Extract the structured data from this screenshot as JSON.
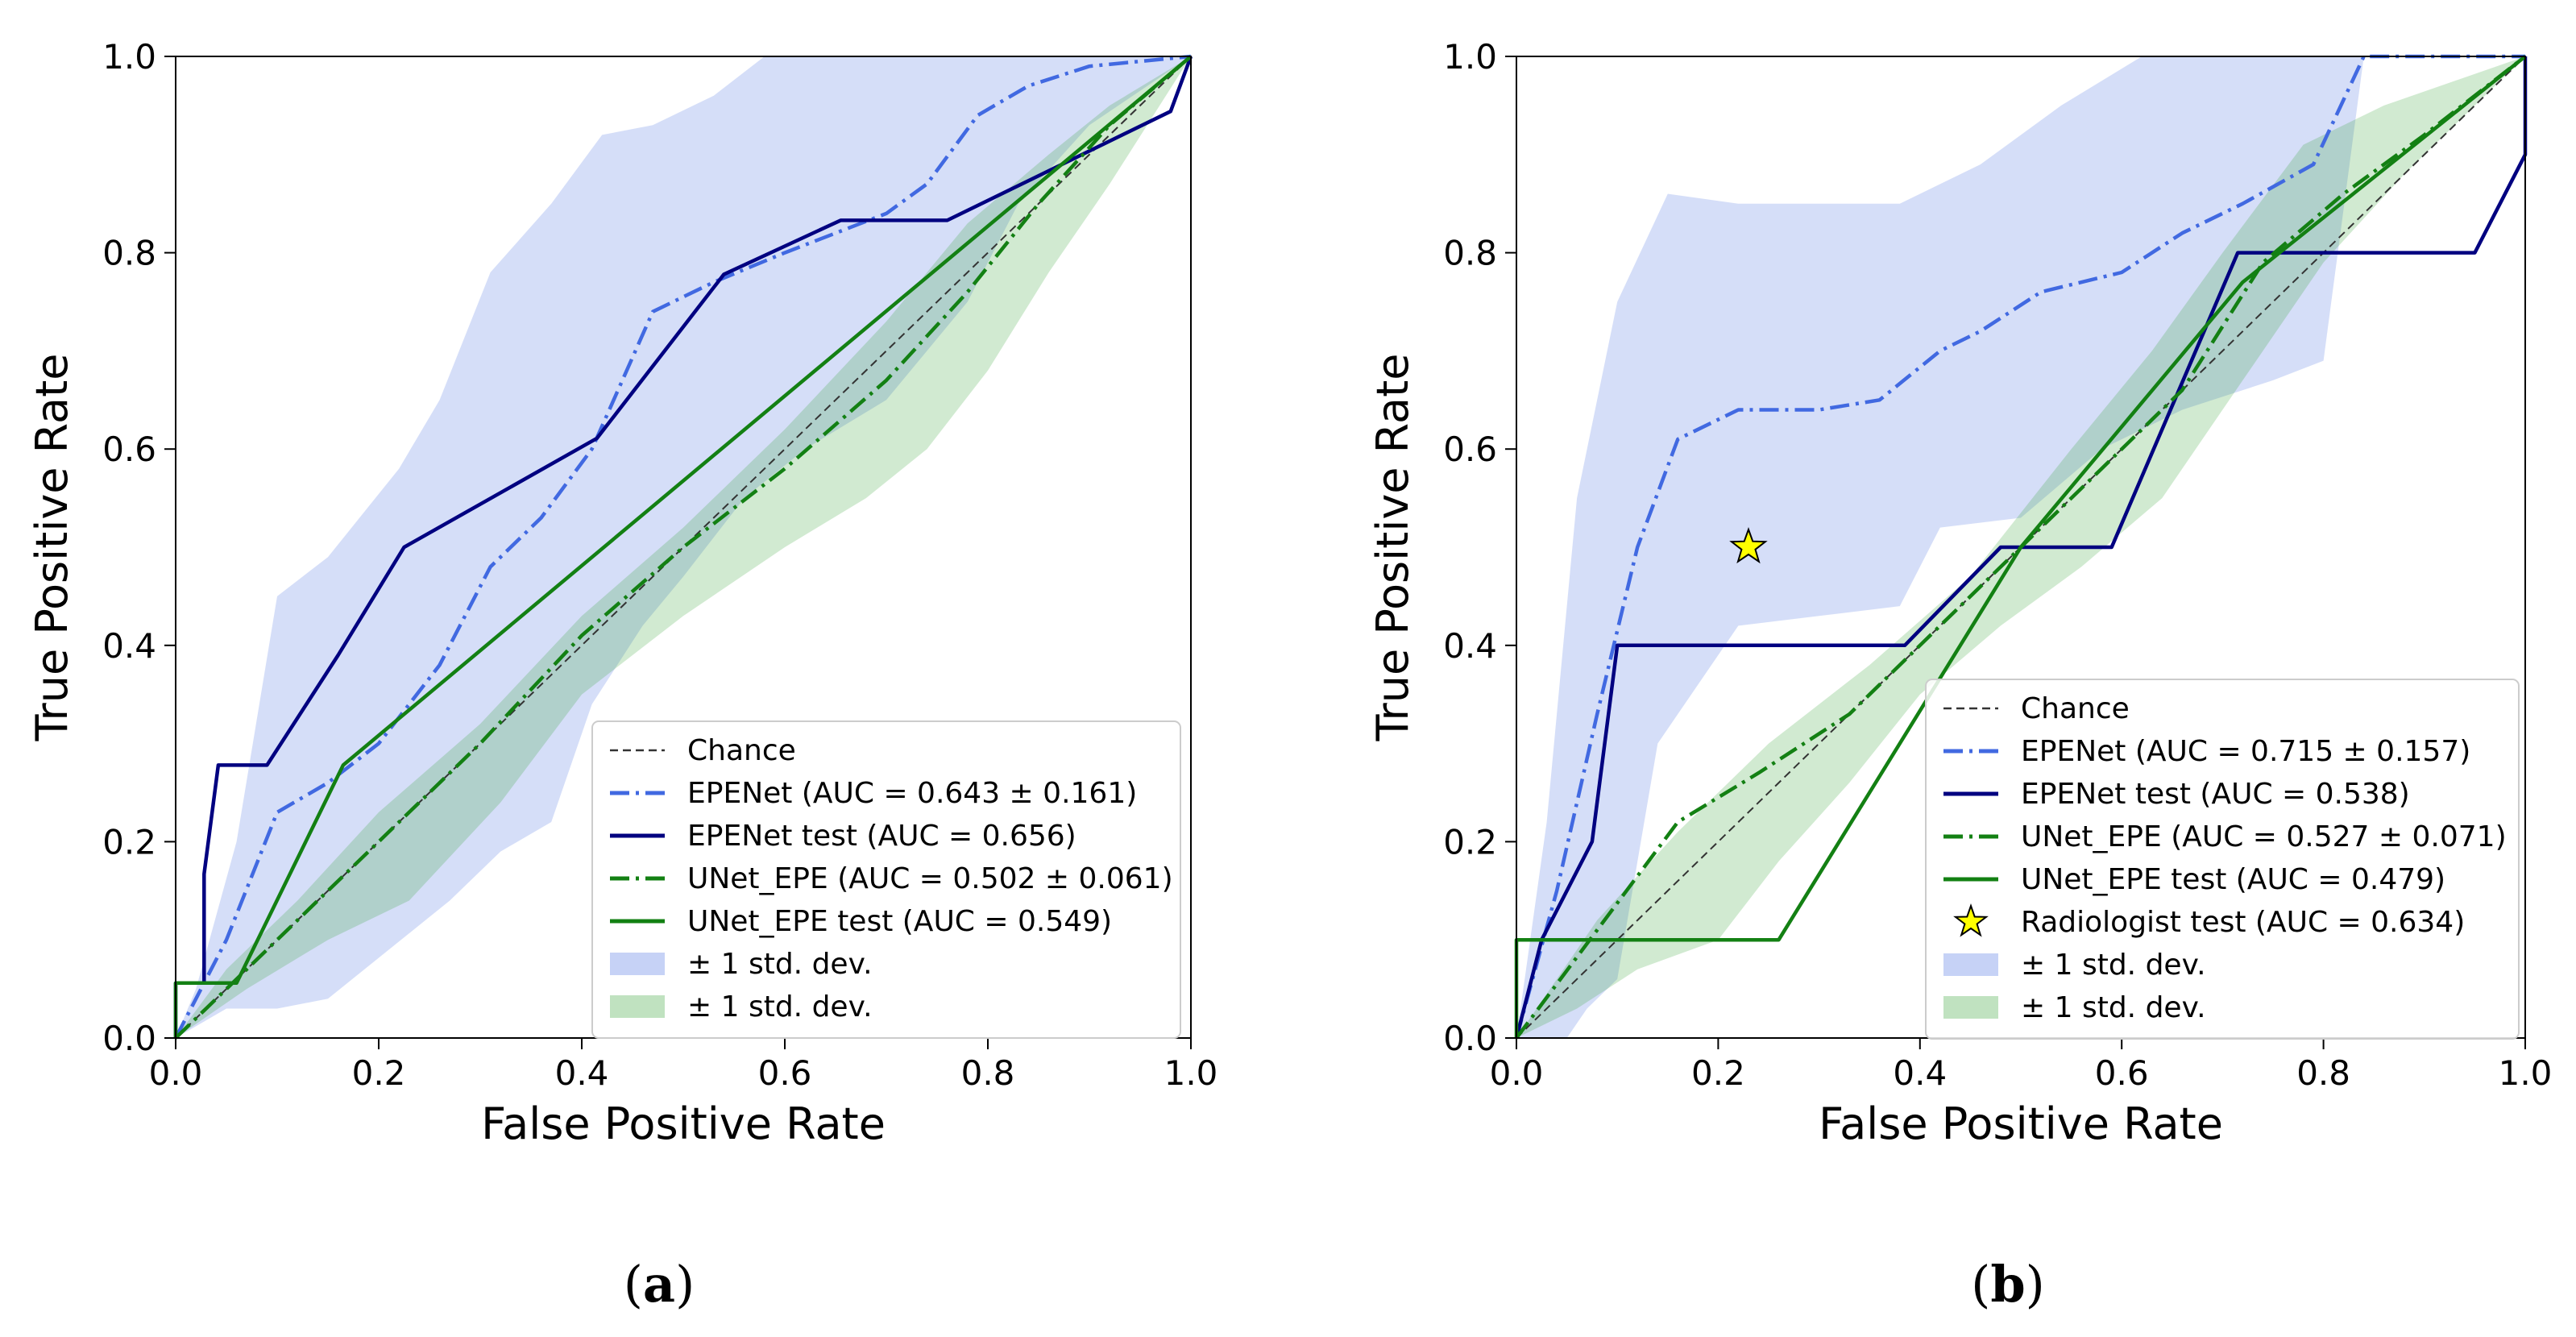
{
  "chart_data": [
    {
      "type": "line",
      "caption_letter": "a",
      "xlabel": "False Positive Rate",
      "ylabel": "True Positive Rate",
      "xlim": [
        0,
        1
      ],
      "ylim": [
        0,
        1
      ],
      "xticks": [
        "0.0",
        "0.2",
        "0.4",
        "0.6",
        "0.8",
        "1.0"
      ],
      "yticks": [
        "0.0",
        "0.2",
        "0.4",
        "0.6",
        "0.8",
        "1.0"
      ],
      "legend_position": "lower-right",
      "legend": [
        "Chance",
        "EPENet (AUC = 0.643 ± 0.161)",
        "EPENet test (AUC = 0.656)",
        "UNet_EPE (AUC = 0.502 ± 0.061)",
        "UNet_EPE test (AUC = 0.549)",
        "± 1 std. dev.",
        "± 1 std. dev."
      ],
      "bands": [
        {
          "name": "EPENet ± 1 std. dev.",
          "color": "#4169e1",
          "upper": [
            [
              0,
              0
            ],
            [
              0.02,
              0.05
            ],
            [
              0.06,
              0.2
            ],
            [
              0.1,
              0.45
            ],
            [
              0.15,
              0.49
            ],
            [
              0.22,
              0.58
            ],
            [
              0.26,
              0.65
            ],
            [
              0.31,
              0.78
            ],
            [
              0.37,
              0.85
            ],
            [
              0.42,
              0.92
            ],
            [
              0.47,
              0.93
            ],
            [
              0.53,
              0.96
            ],
            [
              0.58,
              1.0
            ],
            [
              1.0,
              1.0
            ]
          ],
          "lower": [
            [
              0,
              0
            ],
            [
              0.05,
              0.03
            ],
            [
              0.1,
              0.03
            ],
            [
              0.15,
              0.04
            ],
            [
              0.21,
              0.09
            ],
            [
              0.27,
              0.14
            ],
            [
              0.32,
              0.19
            ],
            [
              0.37,
              0.22
            ],
            [
              0.41,
              0.34
            ],
            [
              0.46,
              0.42
            ],
            [
              0.5,
              0.47
            ],
            [
              0.56,
              0.55
            ],
            [
              0.62,
              0.6
            ],
            [
              0.7,
              0.65
            ],
            [
              0.78,
              0.75
            ],
            [
              0.83,
              0.85
            ],
            [
              0.9,
              0.93
            ],
            [
              1.0,
              1.0
            ]
          ]
        },
        {
          "name": "UNet_EPE ± 1 std. dev.",
          "color": "#2e9e2e",
          "upper": [
            [
              0,
              0
            ],
            [
              0.05,
              0.07
            ],
            [
              0.12,
              0.14
            ],
            [
              0.2,
              0.23
            ],
            [
              0.3,
              0.32
            ],
            [
              0.4,
              0.43
            ],
            [
              0.5,
              0.52
            ],
            [
              0.6,
              0.62
            ],
            [
              0.7,
              0.73
            ],
            [
              0.78,
              0.83
            ],
            [
              0.86,
              0.9
            ],
            [
              0.92,
              0.95
            ],
            [
              1.0,
              1.0
            ]
          ],
          "lower": [
            [
              0,
              0
            ],
            [
              0.07,
              0.05
            ],
            [
              0.15,
              0.1
            ],
            [
              0.23,
              0.14
            ],
            [
              0.32,
              0.24
            ],
            [
              0.4,
              0.35
            ],
            [
              0.5,
              0.43
            ],
            [
              0.6,
              0.5
            ],
            [
              0.68,
              0.55
            ],
            [
              0.74,
              0.6
            ],
            [
              0.8,
              0.68
            ],
            [
              0.86,
              0.78
            ],
            [
              0.92,
              0.87
            ],
            [
              1.0,
              1.0
            ]
          ]
        }
      ],
      "series": [
        {
          "name": "Chance",
          "style": "dashed-thin",
          "color": "#333333",
          "points": [
            [
              0,
              0
            ],
            [
              1,
              1
            ]
          ]
        },
        {
          "name": "EPENet (AUC = 0.643 ± 0.161)",
          "style": "dashdot",
          "color": "#4169e1",
          "points": [
            [
              0,
              0
            ],
            [
              0.05,
              0.1
            ],
            [
              0.1,
              0.23
            ],
            [
              0.15,
              0.26
            ],
            [
              0.2,
              0.3
            ],
            [
              0.26,
              0.38
            ],
            [
              0.31,
              0.48
            ],
            [
              0.36,
              0.53
            ],
            [
              0.41,
              0.6
            ],
            [
              0.47,
              0.74
            ],
            [
              0.53,
              0.77
            ],
            [
              0.6,
              0.8
            ],
            [
              0.7,
              0.84
            ],
            [
              0.74,
              0.87
            ],
            [
              0.79,
              0.94
            ],
            [
              0.84,
              0.97
            ],
            [
              0.9,
              0.99
            ],
            [
              1.0,
              1.0
            ]
          ]
        },
        {
          "name": "EPENet test (AUC = 0.656)",
          "style": "solid",
          "color": "#000080",
          "points": [
            [
              0,
              0
            ],
            [
              0,
              0.056
            ],
            [
              0.028,
              0.056
            ],
            [
              0.028,
              0.167
            ],
            [
              0.042,
              0.278
            ],
            [
              0.09,
              0.278
            ],
            [
              0.16,
              0.39
            ],
            [
              0.225,
              0.5
            ],
            [
              0.415,
              0.611
            ],
            [
              0.54,
              0.778
            ],
            [
              0.655,
              0.833
            ],
            [
              0.76,
              0.833
            ],
            [
              0.98,
              0.944
            ],
            [
              1.0,
              1.0
            ]
          ]
        },
        {
          "name": "UNet_EPE (AUC = 0.502 ± 0.061)",
          "style": "dashdot",
          "color": "#138013",
          "points": [
            [
              0,
              0
            ],
            [
              0.1,
              0.1
            ],
            [
              0.2,
              0.2
            ],
            [
              0.3,
              0.3
            ],
            [
              0.4,
              0.41
            ],
            [
              0.5,
              0.5
            ],
            [
              0.6,
              0.58
            ],
            [
              0.7,
              0.67
            ],
            [
              0.78,
              0.76
            ],
            [
              0.85,
              0.85
            ],
            [
              0.92,
              0.93
            ],
            [
              1.0,
              1.0
            ]
          ]
        },
        {
          "name": "UNet_EPE test (AUC = 0.549)",
          "style": "solid",
          "color": "#138013",
          "points": [
            [
              0,
              0
            ],
            [
              0,
              0.056
            ],
            [
              0.06,
              0.056
            ],
            [
              0.165,
              0.278
            ],
            [
              1.0,
              1.0
            ]
          ]
        }
      ]
    },
    {
      "type": "line",
      "caption_letter": "b",
      "xlabel": "False Positive Rate",
      "ylabel": "True Positive Rate",
      "xlim": [
        0,
        1
      ],
      "ylim": [
        0,
        1
      ],
      "xticks": [
        "0.0",
        "0.2",
        "0.4",
        "0.6",
        "0.8",
        "1.0"
      ],
      "yticks": [
        "0.0",
        "0.2",
        "0.4",
        "0.6",
        "0.8",
        "1.0"
      ],
      "legend_position": "lower-right",
      "legend": [
        "Chance",
        "EPENet (AUC = 0.715 ± 0.157)",
        "EPENet test (AUC = 0.538)",
        "UNet_EPE (AUC = 0.527 ± 0.071)",
        "UNet_EPE test (AUC = 0.479)",
        "Radiologist test (AUC = 0.634)",
        "± 1 std. dev.",
        "± 1 std. dev."
      ],
      "bands": [
        {
          "name": "EPENet ± 1 std. dev.",
          "color": "#4169e1",
          "upper": [
            [
              0,
              0
            ],
            [
              0.03,
              0.22
            ],
            [
              0.06,
              0.55
            ],
            [
              0.1,
              0.75
            ],
            [
              0.15,
              0.86
            ],
            [
              0.22,
              0.85
            ],
            [
              0.3,
              0.85
            ],
            [
              0.38,
              0.85
            ],
            [
              0.46,
              0.89
            ],
            [
              0.54,
              0.95
            ],
            [
              0.62,
              1.0
            ],
            [
              1.0,
              1.0
            ]
          ],
          "lower": [
            [
              0,
              0
            ],
            [
              0.05,
              0.0
            ],
            [
              0.07,
              0.03
            ],
            [
              0.1,
              0.06
            ],
            [
              0.14,
              0.3
            ],
            [
              0.22,
              0.42
            ],
            [
              0.3,
              0.43
            ],
            [
              0.38,
              0.44
            ],
            [
              0.42,
              0.52
            ],
            [
              0.5,
              0.53
            ],
            [
              0.58,
              0.6
            ],
            [
              0.66,
              0.64
            ],
            [
              0.75,
              0.67
            ],
            [
              0.8,
              0.69
            ],
            [
              0.84,
              1.0
            ],
            [
              1.0,
              1.0
            ]
          ]
        },
        {
          "name": "UNet_EPE ± 1 std. dev.",
          "color": "#2e9e2e",
          "upper": [
            [
              0,
              0
            ],
            [
              0.04,
              0.06
            ],
            [
              0.08,
              0.12
            ],
            [
              0.16,
              0.21
            ],
            [
              0.25,
              0.3
            ],
            [
              0.35,
              0.38
            ],
            [
              0.45,
              0.47
            ],
            [
              0.55,
              0.6
            ],
            [
              0.63,
              0.7
            ],
            [
              0.7,
              0.8
            ],
            [
              0.78,
              0.91
            ],
            [
              0.86,
              0.95
            ],
            [
              1.0,
              1.0
            ]
          ],
          "lower": [
            [
              0,
              0
            ],
            [
              0.06,
              0.03
            ],
            [
              0.12,
              0.07
            ],
            [
              0.2,
              0.1
            ],
            [
              0.26,
              0.18
            ],
            [
              0.33,
              0.26
            ],
            [
              0.4,
              0.35
            ],
            [
              0.48,
              0.42
            ],
            [
              0.56,
              0.48
            ],
            [
              0.64,
              0.55
            ],
            [
              0.72,
              0.67
            ],
            [
              0.8,
              0.79
            ],
            [
              0.88,
              0.88
            ],
            [
              0.94,
              0.94
            ],
            [
              1.0,
              1.0
            ]
          ]
        }
      ],
      "series": [
        {
          "name": "Chance",
          "style": "dashed-thin",
          "color": "#333333",
          "points": [
            [
              0,
              0
            ],
            [
              1,
              1
            ]
          ]
        },
        {
          "name": "EPENet (AUC = 0.715 ± 0.157)",
          "style": "dashdot",
          "color": "#4169e1",
          "points": [
            [
              0,
              0
            ],
            [
              0.04,
              0.15
            ],
            [
              0.08,
              0.33
            ],
            [
              0.12,
              0.5
            ],
            [
              0.16,
              0.61
            ],
            [
              0.22,
              0.64
            ],
            [
              0.3,
              0.64
            ],
            [
              0.36,
              0.65
            ],
            [
              0.42,
              0.7
            ],
            [
              0.46,
              0.72
            ],
            [
              0.52,
              0.76
            ],
            [
              0.6,
              0.78
            ],
            [
              0.66,
              0.82
            ],
            [
              0.72,
              0.85
            ],
            [
              0.79,
              0.89
            ],
            [
              0.84,
              1.0
            ],
            [
              1.0,
              1.0
            ]
          ]
        },
        {
          "name": "EPENet test (AUC = 0.538)",
          "style": "solid",
          "color": "#000080",
          "points": [
            [
              0,
              0
            ],
            [
              0.025,
              0.1
            ],
            [
              0.075,
              0.2
            ],
            [
              0.1,
              0.4
            ],
            [
              0.385,
              0.4
            ],
            [
              0.48,
              0.5
            ],
            [
              0.59,
              0.5
            ],
            [
              0.715,
              0.8
            ],
            [
              0.95,
              0.8
            ],
            [
              1.0,
              0.9
            ],
            [
              1.0,
              1.0
            ]
          ]
        },
        {
          "name": "UNet_EPE (AUC = 0.527 ± 0.071)",
          "style": "dashdot",
          "color": "#138013",
          "points": [
            [
              0,
              0
            ],
            [
              0.08,
              0.11
            ],
            [
              0.16,
              0.22
            ],
            [
              0.24,
              0.27
            ],
            [
              0.33,
              0.33
            ],
            [
              0.4,
              0.4
            ],
            [
              0.5,
              0.5
            ],
            [
              0.58,
              0.58
            ],
            [
              0.66,
              0.66
            ],
            [
              0.74,
              0.79
            ],
            [
              0.82,
              0.86
            ],
            [
              0.9,
              0.92
            ],
            [
              1.0,
              1.0
            ]
          ]
        },
        {
          "name": "UNet_EPE test (AUC = 0.479)",
          "style": "solid",
          "color": "#138013",
          "points": [
            [
              0,
              0
            ],
            [
              0,
              0.1
            ],
            [
              0.26,
              0.1
            ],
            [
              0.5,
              0.5
            ],
            [
              0.72,
              0.77
            ],
            [
              1.0,
              1.0
            ]
          ]
        }
      ],
      "markers": [
        {
          "name": "Radiologist test (AUC = 0.634)",
          "shape": "star",
          "color": "#ffff00",
          "edge": "#000000",
          "x": 0.23,
          "y": 0.5
        }
      ]
    }
  ]
}
